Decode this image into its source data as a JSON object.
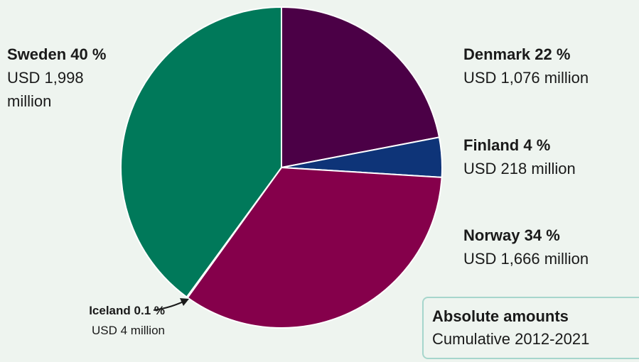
{
  "chart_data": {
    "type": "pie",
    "categories": [
      "Denmark",
      "Finland",
      "Norway",
      "Iceland",
      "Sweden"
    ],
    "values": [
      22,
      4,
      34,
      0.1,
      40
    ],
    "value_labels": [
      "22 %",
      "4 %",
      "34 %",
      "0.1 %",
      "40 %"
    ],
    "amount_labels": [
      "USD 1,076 million",
      "USD 218 million",
      "USD 1,666 million",
      "USD 4 million",
      "USD 1,998 million"
    ],
    "colors": [
      "#4b0046",
      "#0e3478",
      "#85004b",
      "#00795a",
      "#00795a"
    ],
    "annotation": {
      "title": "Absolute amounts",
      "subtitle": "Cumulative 2012-2021"
    }
  }
}
